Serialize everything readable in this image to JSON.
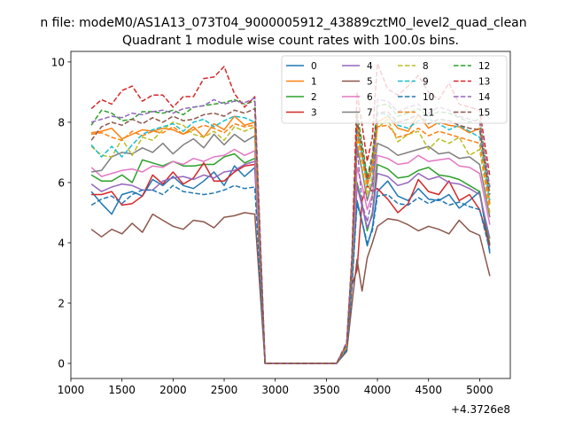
{
  "chart_data": {
    "type": "line",
    "suptitle": "n file: modeM0/AS1A13_073T04_9000005912_43889cztM0_level2_quad_clean",
    "title": "Quadrant 1 module wise count rates with 100.0s bins.",
    "xlabel": "",
    "ylabel": "",
    "offset_label": "+4.3726e8",
    "xlim": [
      1000,
      5300
    ],
    "ylim": [
      -0.5,
      10.35
    ],
    "x_ticks": [
      1000,
      1500,
      2000,
      2500,
      3000,
      3500,
      4000,
      4500,
      5000
    ],
    "x_tick_labels": [
      "1000",
      "1500",
      "2000",
      "2500",
      "3000",
      "3500",
      "4000",
      "4500",
      "5000"
    ],
    "y_ticks": [
      0,
      2,
      4,
      6,
      8,
      10
    ],
    "y_tick_labels": [
      "0",
      "2",
      "4",
      "6",
      "8",
      "10"
    ],
    "grid": false,
    "legend_placement": "top-right",
    "legend_columns": 4,
    "x": [
      1200,
      1300,
      1400,
      1500,
      1600,
      1700,
      1800,
      1900,
      2000,
      2100,
      2200,
      2300,
      2400,
      2500,
      2600,
      2700,
      2800,
      2900,
      3000,
      3100,
      3200,
      3300,
      3400,
      3500,
      3600,
      3700,
      3750,
      3800,
      3850,
      3900,
      3950,
      4000,
      4100,
      4200,
      4300,
      4400,
      4500,
      4600,
      4700,
      4800,
      4900,
      5000,
      5100
    ],
    "series": [
      {
        "name": "0",
        "color": "#1f77b4",
        "dash": "solid",
        "values": [
          5.7,
          5.3,
          4.95,
          5.6,
          5.7,
          5.55,
          6.1,
          5.9,
          6.2,
          5.9,
          5.8,
          6.05,
          6.35,
          5.9,
          6.55,
          6.2,
          6.5,
          0,
          0,
          0,
          0,
          0,
          0,
          0,
          0,
          0.45,
          2.6,
          5.4,
          4.7,
          3.9,
          4.5,
          5.7,
          6.05,
          5.55,
          5.4,
          5.8,
          5.45,
          5.4,
          5.6,
          5.15,
          5.4,
          5.7,
          3.65
        ]
      },
      {
        "name": "1",
        "color": "#ff7f0e",
        "dash": "solid",
        "values": [
          7.65,
          7.7,
          7.8,
          7.45,
          7.6,
          7.75,
          7.7,
          7.8,
          7.75,
          7.6,
          7.85,
          7.5,
          7.95,
          7.75,
          8.2,
          7.9,
          8.0,
          0,
          0,
          0,
          0,
          0,
          0,
          0,
          0,
          0.6,
          3.2,
          7.9,
          6.9,
          6.0,
          6.6,
          8.0,
          8.2,
          7.8,
          7.7,
          8.25,
          7.8,
          8.0,
          7.9,
          7.85,
          7.65,
          7.8,
          5.3
        ]
      },
      {
        "name": "2",
        "color": "#2ca02c",
        "dash": "solid",
        "values": [
          6.25,
          6.05,
          6.05,
          6.25,
          6.0,
          6.75,
          6.65,
          6.55,
          6.7,
          6.55,
          6.55,
          6.6,
          6.6,
          6.85,
          6.95,
          6.65,
          6.8,
          0,
          0,
          0,
          0,
          0,
          0,
          0,
          0,
          0.5,
          2.7,
          6.0,
          5.3,
          4.4,
          5.0,
          6.6,
          6.45,
          6.15,
          6.2,
          6.4,
          6.5,
          6.25,
          6.2,
          6.1,
          5.9,
          5.7,
          3.95
        ]
      },
      {
        "name": "3",
        "color": "#d62728",
        "dash": "solid",
        "values": [
          5.6,
          5.6,
          5.7,
          5.25,
          5.3,
          5.55,
          6.25,
          5.95,
          6.35,
          5.95,
          6.15,
          6.65,
          6.05,
          6.05,
          6.35,
          6.55,
          6.6,
          0,
          0,
          0,
          0,
          0,
          0,
          0,
          0,
          0.45,
          2.6,
          3.1,
          5.4,
          5.9,
          5.7,
          5.8,
          5.45,
          5.0,
          5.3,
          6.1,
          5.7,
          5.6,
          6.05,
          5.4,
          5.6,
          5.1,
          3.9
        ]
      },
      {
        "name": "4",
        "color": "#9467bd",
        "dash": "solid",
        "values": [
          5.95,
          5.7,
          5.85,
          5.95,
          5.9,
          5.75,
          5.75,
          6.05,
          6.15,
          6.2,
          6.1,
          6.25,
          6.15,
          6.35,
          6.4,
          6.6,
          6.7,
          0,
          0,
          0,
          0,
          0,
          0,
          0,
          0,
          0.5,
          2.7,
          5.9,
          5.2,
          4.5,
          4.9,
          6.3,
          6.2,
          5.9,
          6.0,
          6.3,
          6.1,
          6.2,
          6.0,
          5.95,
          5.8,
          5.6,
          4.15
        ]
      },
      {
        "name": "5",
        "color": "#8c564b",
        "dash": "solid",
        "values": [
          4.45,
          4.2,
          4.45,
          4.3,
          4.65,
          4.35,
          4.95,
          4.75,
          4.55,
          4.45,
          4.75,
          4.7,
          4.5,
          4.85,
          4.9,
          5.0,
          4.95,
          0,
          0,
          0,
          0,
          0,
          0,
          0,
          0,
          0.4,
          1.95,
          3.45,
          2.4,
          3.5,
          4.0,
          4.55,
          4.8,
          4.75,
          4.6,
          4.4,
          4.55,
          4.45,
          4.3,
          4.75,
          4.4,
          4.25,
          2.9
        ]
      },
      {
        "name": "6",
        "color": "#e377c2",
        "dash": "solid",
        "values": [
          6.5,
          6.2,
          6.3,
          6.4,
          6.45,
          6.35,
          6.55,
          6.5,
          6.7,
          6.6,
          6.8,
          6.7,
          6.85,
          6.9,
          7.1,
          6.9,
          7.05,
          0,
          0,
          0,
          0,
          0,
          0,
          0,
          0,
          0.55,
          2.9,
          6.5,
          5.9,
          5.1,
          5.6,
          6.9,
          6.8,
          6.6,
          6.65,
          6.9,
          6.7,
          6.75,
          6.8,
          6.55,
          6.5,
          6.3,
          4.6
        ]
      },
      {
        "name": "7",
        "color": "#7f7f7f",
        "dash": "solid",
        "values": [
          6.35,
          6.4,
          6.85,
          7.0,
          6.95,
          7.15,
          7.0,
          7.3,
          6.95,
          7.25,
          7.45,
          7.15,
          7.6,
          7.25,
          7.6,
          7.35,
          7.55,
          0,
          0,
          0,
          0,
          0,
          0,
          0,
          0,
          0.55,
          3.0,
          7.2,
          6.4,
          5.4,
          6.0,
          7.3,
          7.15,
          6.9,
          7.0,
          7.1,
          7.2,
          6.95,
          7.0,
          6.8,
          6.85,
          6.6,
          4.85
        ]
      },
      {
        "name": "8",
        "color": "#bcbd22",
        "dash": "dashed",
        "values": [
          7.2,
          6.9,
          6.85,
          7.45,
          6.9,
          7.5,
          7.4,
          7.75,
          8.0,
          7.9,
          7.6,
          7.5,
          7.7,
          7.4,
          7.85,
          7.7,
          7.85,
          0,
          0,
          0,
          0,
          0,
          0,
          0,
          0,
          0.55,
          3.1,
          7.4,
          6.5,
          5.6,
          6.2,
          7.8,
          8.1,
          7.35,
          7.6,
          7.7,
          7.1,
          7.45,
          7.3,
          7.5,
          6.9,
          7.1,
          5.0
        ]
      },
      {
        "name": "9",
        "color": "#17becf",
        "dash": "dashed",
        "values": [
          7.25,
          6.85,
          7.2,
          6.85,
          7.25,
          7.6,
          7.75,
          7.85,
          7.95,
          7.7,
          8.0,
          8.1,
          7.85,
          8.05,
          8.2,
          8.15,
          8.0,
          0,
          0,
          0,
          0,
          0,
          0,
          0,
          0,
          0.6,
          3.2,
          7.7,
          6.9,
          5.9,
          6.4,
          8.3,
          8.25,
          7.9,
          7.8,
          8.05,
          8.1,
          7.95,
          7.75,
          7.9,
          7.7,
          7.5,
          5.4
        ]
      },
      {
        "name": "10",
        "color": "#1f77b4",
        "dash": "dashed",
        "values": [
          5.25,
          5.45,
          5.55,
          5.3,
          5.6,
          5.75,
          5.75,
          5.6,
          5.9,
          5.7,
          5.65,
          5.6,
          5.65,
          5.75,
          5.9,
          5.8,
          5.85,
          0,
          0,
          0,
          0,
          0,
          0,
          0,
          0,
          0.45,
          2.5,
          5.3,
          4.7,
          4.0,
          4.4,
          5.55,
          5.6,
          5.3,
          5.25,
          5.5,
          5.3,
          5.45,
          5.25,
          5.35,
          5.2,
          5.1,
          3.75
        ]
      },
      {
        "name": "11",
        "color": "#ff7f0e",
        "dash": "dashed",
        "values": [
          7.6,
          7.65,
          7.5,
          7.4,
          7.7,
          7.55,
          7.7,
          7.65,
          7.85,
          7.6,
          7.75,
          7.9,
          7.8,
          7.65,
          7.95,
          7.85,
          7.9,
          0,
          0,
          0,
          0,
          0,
          0,
          0,
          0,
          0.6,
          3.2,
          7.6,
          6.8,
          5.9,
          6.5,
          7.85,
          7.9,
          7.5,
          7.6,
          7.8,
          7.55,
          7.7,
          7.6,
          7.5,
          7.4,
          7.3,
          5.2
        ]
      },
      {
        "name": "12",
        "color": "#2ca02c",
        "dash": "dashed",
        "values": [
          7.9,
          8.4,
          8.3,
          8.05,
          8.1,
          8.35,
          8.35,
          8.3,
          8.4,
          8.25,
          8.5,
          8.55,
          8.6,
          8.65,
          8.75,
          8.6,
          8.7,
          0,
          0,
          0,
          0,
          0,
          0,
          0,
          0,
          0.65,
          3.4,
          8.3,
          7.3,
          6.2,
          6.9,
          8.55,
          8.6,
          8.2,
          8.3,
          8.45,
          8.2,
          8.35,
          8.3,
          8.15,
          8.0,
          8.1,
          5.75
        ]
      },
      {
        "name": "13",
        "color": "#d62728",
        "dash": "dashed",
        "values": [
          8.45,
          8.75,
          8.6,
          9.05,
          9.2,
          8.7,
          8.9,
          8.9,
          8.5,
          8.85,
          8.85,
          9.45,
          9.5,
          9.85,
          8.95,
          8.5,
          8.85,
          0,
          0,
          0,
          0,
          0,
          0,
          0,
          0,
          0.7,
          3.6,
          9.0,
          7.9,
          6.7,
          7.5,
          9.95,
          9.1,
          8.9,
          9.2,
          9.55,
          9.0,
          8.75,
          9.3,
          8.6,
          8.5,
          8.4,
          6.2
        ]
      },
      {
        "name": "14",
        "color": "#9467bd",
        "dash": "dashed",
        "values": [
          8.0,
          8.1,
          8.2,
          8.15,
          8.3,
          8.25,
          8.35,
          8.4,
          8.3,
          8.45,
          8.5,
          8.55,
          8.75,
          8.6,
          8.7,
          8.65,
          8.8,
          0,
          0,
          0,
          0,
          0,
          0,
          0,
          0,
          0.7,
          3.5,
          7.2,
          5.3,
          4.7,
          5.5,
          8.75,
          8.7,
          8.35,
          8.5,
          8.6,
          8.3,
          8.5,
          8.4,
          8.2,
          8.1,
          8.0,
          5.85
        ]
      },
      {
        "name": "15",
        "color": "#8c564b",
        "dash": "dashed",
        "values": [
          7.4,
          7.85,
          8.0,
          7.9,
          8.1,
          7.95,
          8.15,
          8.0,
          8.2,
          8.05,
          8.1,
          8.25,
          8.3,
          8.2,
          8.4,
          8.3,
          8.45,
          0,
          0,
          0,
          0,
          0,
          0,
          0,
          0,
          0.65,
          3.4,
          8.1,
          7.1,
          6.1,
          6.8,
          8.3,
          8.35,
          8.0,
          8.1,
          8.25,
          7.95,
          8.1,
          8.05,
          7.9,
          7.8,
          7.75,
          5.6
        ]
      }
    ]
  }
}
